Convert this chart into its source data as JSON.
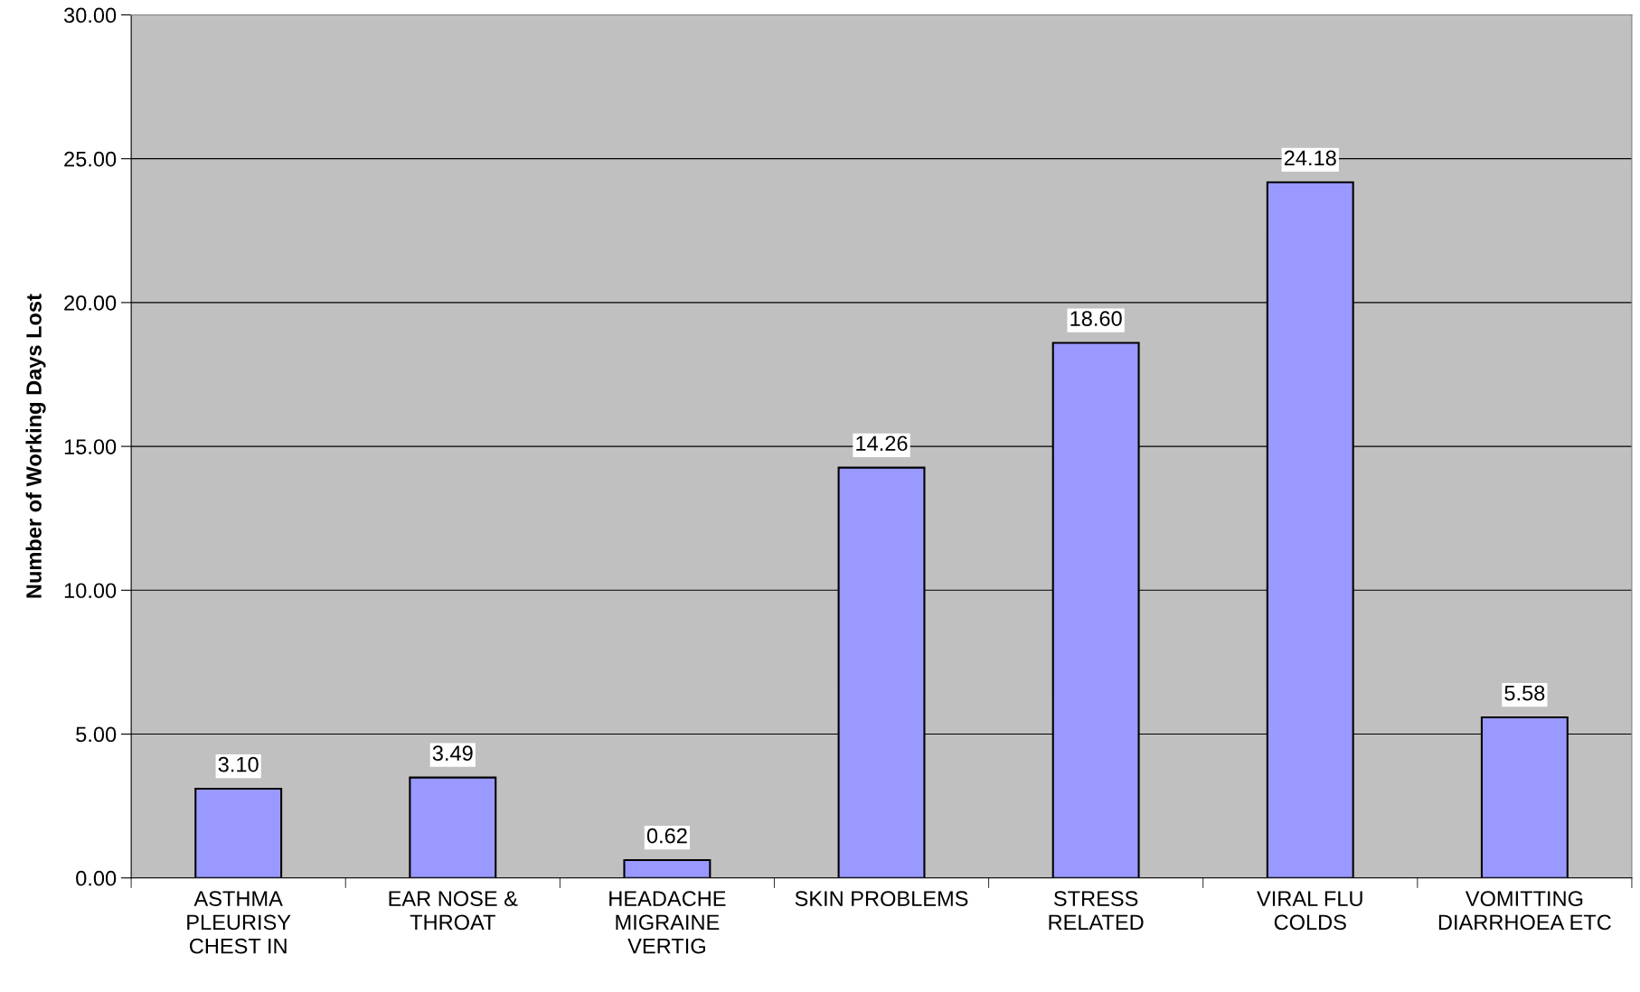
{
  "chart_data": {
    "type": "bar",
    "ylabel": "Number of Working Days Lost",
    "categories": [
      "ASTHMA\nPLEURISY\nCHEST IN",
      "EAR NOSE &\nTHROAT",
      "HEADACHE\nMIGRAINE\nVERTIG",
      "SKIN PROBLEMS",
      "STRESS\nRELATED",
      "VIRAL FLU\nCOLDS",
      "VOMITTING\nDIARRHOEA ETC"
    ],
    "values": [
      3.1,
      3.49,
      0.62,
      14.26,
      18.6,
      24.18,
      5.58
    ],
    "value_labels": [
      "3.10",
      "3.49",
      "0.62",
      "14.26",
      "18.60",
      "24.18",
      "5.58"
    ],
    "color": "#9999ff",
    "ylim": [
      0,
      30
    ],
    "yticks": [
      {
        "value": 0,
        "label": "0.00"
      },
      {
        "value": 5,
        "label": "5.00"
      },
      {
        "value": 10,
        "label": "10.00"
      },
      {
        "value": 15,
        "label": "15.00"
      },
      {
        "value": 20,
        "label": "20.00"
      },
      {
        "value": 25,
        "label": "25.00"
      },
      {
        "value": 30,
        "label": "30.00"
      }
    ],
    "grid": "y",
    "legend": false
  }
}
